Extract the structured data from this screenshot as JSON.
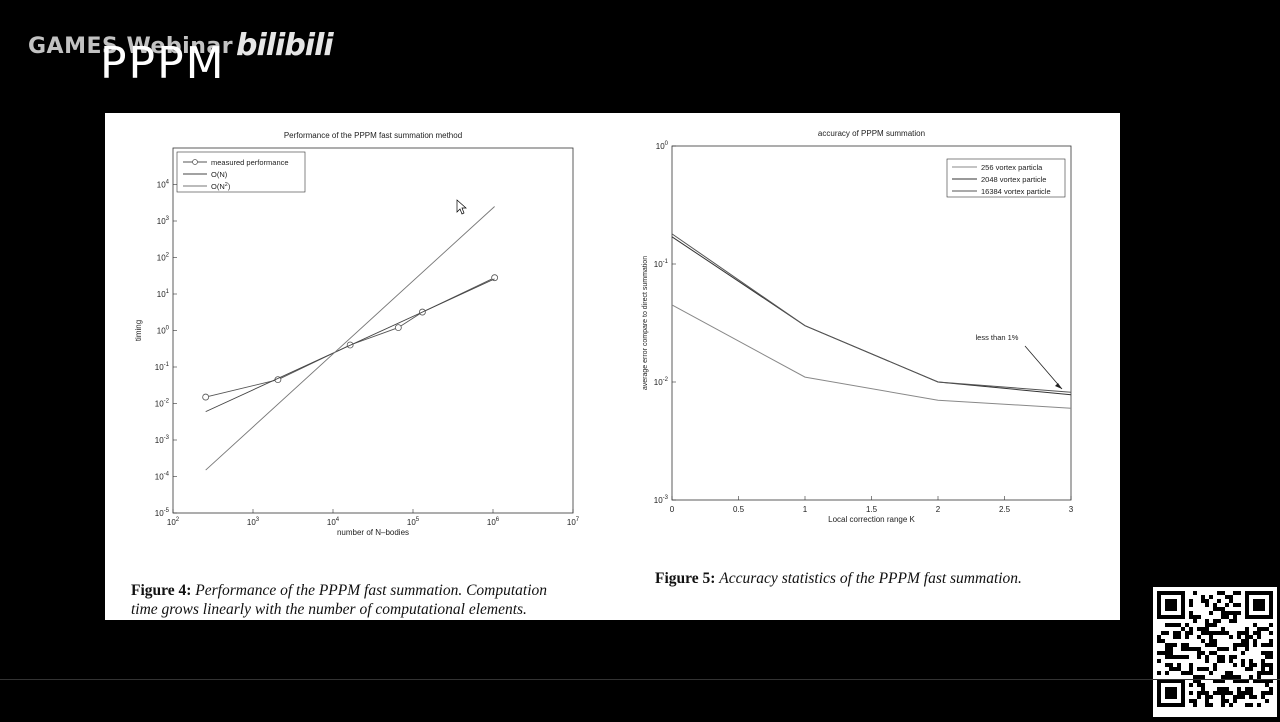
{
  "watermark": "GAMES Webinar",
  "bili_logo": "bilibili",
  "slide_title": "PPPM",
  "figure4": {
    "label": "Figure 4:",
    "caption_line1": "Performance of the PPPM fast summation. Computation",
    "caption_line2": "time grows linearly with the number of computational elements."
  },
  "figure5": {
    "label": "Figure 5:",
    "caption": "Accuracy statistics of the PPPM fast summation."
  },
  "chart_data": [
    {
      "type": "line",
      "title": "Performance of the PPPM fast summation method",
      "xlabel": "number of N–bodies",
      "ylabel": "timing",
      "xscale": "log",
      "yscale": "log",
      "xlim": [
        100,
        10000000
      ],
      "ylim": [
        1e-05,
        100000
      ],
      "x_ticks": [
        "10^2",
        "10^3",
        "10^4",
        "10^5",
        "10^6",
        "10^7"
      ],
      "y_ticks": [
        "10^-5",
        "10^-4",
        "10^-3",
        "10^-2",
        "10^-1",
        "10^0",
        "10^1",
        "10^2",
        "10^3",
        "10^4"
      ],
      "legend_position": "top-left",
      "series": [
        {
          "name": "measured performance",
          "marker": "circle",
          "x": [
            256,
            2048,
            16384,
            65536,
            131072,
            1048576
          ],
          "y": [
            0.015,
            0.045,
            0.4,
            1.2,
            3.2,
            28
          ]
        },
        {
          "name": "O(N)",
          "x": [
            256,
            1048576
          ],
          "y": [
            0.006,
            26
          ]
        },
        {
          "name": "O(N^2)",
          "x": [
            256,
            1048576
          ],
          "y": [
            0.00015,
            2500
          ]
        }
      ]
    },
    {
      "type": "line",
      "title": "accuracy of PPPM summation",
      "xlabel": "Local correction range K",
      "ylabel": "average error compare to direct summation",
      "yscale": "log",
      "xlim": [
        0,
        3
      ],
      "ylim": [
        0.001,
        1
      ],
      "x_ticks": [
        "0",
        "0.5",
        "1",
        "1.5",
        "2",
        "2.5",
        "3"
      ],
      "y_ticks": [
        "10^-3",
        "10^-2",
        "10^-1",
        "10^0"
      ],
      "legend_position": "top-right",
      "annotation": "less than 1%",
      "series": [
        {
          "name": "256 vortex particla",
          "x": [
            0,
            1,
            2,
            3
          ],
          "y": [
            0.045,
            0.011,
            0.007,
            0.006
          ]
        },
        {
          "name": "2048 vortex particle",
          "x": [
            0,
            1,
            2,
            3
          ],
          "y": [
            0.17,
            0.03,
            0.01,
            0.0078
          ]
        },
        {
          "name": "16384 vortex particle",
          "x": [
            0,
            1,
            2,
            3
          ],
          "y": [
            0.18,
            0.03,
            0.01,
            0.0082
          ]
        }
      ]
    }
  ]
}
